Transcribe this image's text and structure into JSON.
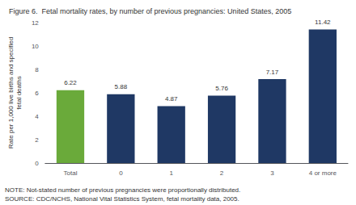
{
  "chart_data": {
    "type": "bar",
    "title": "Figure 6.  Fetal mortality rates, by number of previous pregnancies: United States, 2005",
    "ylabel": "Rate per 1,000 live births and specified\nfetal deaths",
    "categories": [
      "Total",
      "0",
      "1",
      "2",
      "3",
      "4 or more"
    ],
    "values": [
      6.22,
      5.88,
      4.87,
      5.76,
      7.17,
      11.42
    ],
    "colors": [
      "#6aaa3a",
      "#1f3864",
      "#1f3864",
      "#1f3864",
      "#1f3864",
      "#1f3864"
    ],
    "ylim": [
      0,
      12
    ],
    "yticks": [
      0,
      2,
      4,
      6,
      8,
      10,
      12
    ],
    "grid": false,
    "data_labels": true,
    "annotations": [
      "NOTE: Not-stated number of previous pregnancies were proportionally distributed.",
      "SOURCE: CDC/NCHS, National Vital Statistics System, fetal mortality data, 2005."
    ]
  }
}
